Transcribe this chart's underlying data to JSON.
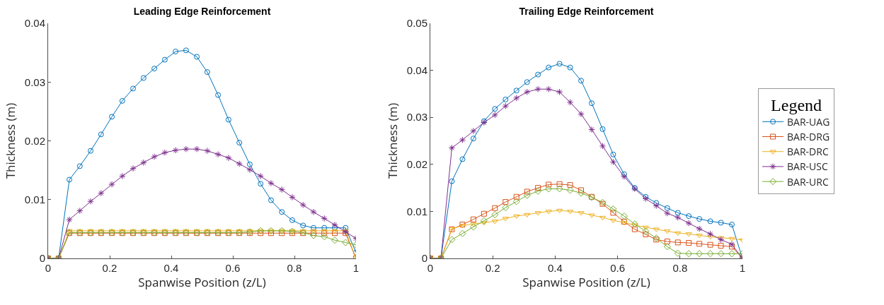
{
  "chart_data": [
    {
      "type": "line",
      "title": "Leading Edge Reinforcement",
      "xlabel": "Spanwise Position (z/L)",
      "ylabel": "Thickness (m)",
      "x": [
        0,
        0.034,
        0.069,
        0.103,
        0.138,
        0.172,
        0.207,
        0.241,
        0.276,
        0.31,
        0.345,
        0.379,
        0.414,
        0.448,
        0.483,
        0.517,
        0.552,
        0.586,
        0.621,
        0.655,
        0.69,
        0.724,
        0.759,
        0.793,
        0.828,
        0.862,
        0.897,
        0.931,
        0.966,
        1
      ],
      "xlim": [
        0,
        1
      ],
      "xticks": [
        0,
        0.2,
        0.4,
        0.6,
        0.8,
        1
      ],
      "ylim": [
        0,
        0.04
      ],
      "yticks": [
        0,
        0.01,
        0.02,
        0.03,
        0.04
      ],
      "grid": false,
      "legend": false,
      "series": [
        {
          "color": "#0072bd",
          "marker": "circle",
          "values": [
            0,
            0,
            0.0134,
            0.0157,
            0.0183,
            0.0211,
            0.0241,
            0.0268,
            0.0289,
            0.0307,
            0.0323,
            0.0338,
            0.0352,
            0.0354,
            0.0343,
            0.0317,
            0.0278,
            0.0236,
            0.0197,
            0.016,
            0.0127,
            0.0099,
            0.0079,
            0.0065,
            0.0056,
            0.0052,
            0.0052,
            0.0052,
            0.0052,
            0.001
          ]
        },
        {
          "color": "#d95319",
          "marker": "square",
          "values": [
            0,
            0,
            0.0043,
            0.0043,
            0.0043,
            0.0043,
            0.0043,
            0.0043,
            0.0043,
            0.0043,
            0.0043,
            0.0043,
            0.0043,
            0.0043,
            0.0043,
            0.0043,
            0.0043,
            0.0043,
            0.0043,
            0.0043,
            0.0043,
            0.0043,
            0.0043,
            0.0043,
            0.0043,
            0.0043,
            0.0043,
            0.0043,
            0.0043,
            0
          ]
        },
        {
          "color": "#edb120",
          "marker": "triangle",
          "values": [
            0,
            0,
            0.0047,
            0.0047,
            0.0047,
            0.0047,
            0.0047,
            0.0047,
            0.0047,
            0.0047,
            0.0047,
            0.0047,
            0.0047,
            0.0047,
            0.0047,
            0.0047,
            0.0047,
            0.0047,
            0.0047,
            0.0047,
            0.0047,
            0.0047,
            0.0047,
            0.0047,
            0.0047,
            0.0047,
            0.0047,
            0.0047,
            0.0047,
            0
          ]
        },
        {
          "color": "#7e2f8e",
          "marker": "cross",
          "values": [
            0,
            0,
            0.0066,
            0.0081,
            0.0097,
            0.0111,
            0.0126,
            0.014,
            0.0153,
            0.0163,
            0.0173,
            0.018,
            0.0184,
            0.0186,
            0.0186,
            0.0183,
            0.0177,
            0.0171,
            0.0161,
            0.0151,
            0.014,
            0.0128,
            0.0117,
            0.0104,
            0.0091,
            0.0079,
            0.0068,
            0.0057,
            0.0045,
            0.0034
          ]
        },
        {
          "color": "#77ac30",
          "marker": "diamond",
          "values": [
            0,
            0,
            0.0044,
            0.0044,
            0.0044,
            0.0044,
            0.0044,
            0.0044,
            0.0044,
            0.0044,
            0.0044,
            0.0044,
            0.0044,
            0.0044,
            0.0044,
            0.0044,
            0.0044,
            0.0044,
            0.0044,
            0.0045,
            0.0047,
            0.0047,
            0.0047,
            0.0046,
            0.0044,
            0.0039,
            0.0037,
            0.0031,
            0.0027,
            0.0023
          ]
        }
      ]
    },
    {
      "type": "line",
      "title": "Trailing Edge Reinforcement",
      "xlabel": "Spanwise Position (z/L)",
      "ylabel": "Thickness (m)",
      "legend_title": "Legend",
      "x": [
        0,
        0.034,
        0.069,
        0.103,
        0.138,
        0.172,
        0.207,
        0.241,
        0.276,
        0.31,
        0.345,
        0.379,
        0.414,
        0.448,
        0.483,
        0.517,
        0.552,
        0.586,
        0.621,
        0.655,
        0.69,
        0.724,
        0.759,
        0.793,
        0.828,
        0.862,
        0.897,
        0.931,
        0.966,
        1
      ],
      "xlim": [
        0,
        1
      ],
      "xticks": [
        0,
        0.2,
        0.4,
        0.6,
        0.8,
        1
      ],
      "ylim": [
        0,
        0.05
      ],
      "yticks": [
        0,
        0.01,
        0.02,
        0.03,
        0.04,
        0.05
      ],
      "grid": false,
      "legend": "right",
      "series": [
        {
          "name": "BAR-UAG",
          "color": "#0072bd",
          "marker": "circle",
          "values": [
            0,
            0,
            0.0164,
            0.0211,
            0.0255,
            0.0292,
            0.0318,
            0.0338,
            0.0357,
            0.0375,
            0.0391,
            0.0406,
            0.0414,
            0.0406,
            0.0378,
            0.033,
            0.0275,
            0.0221,
            0.0179,
            0.015,
            0.0131,
            0.0118,
            0.0107,
            0.0097,
            0.009,
            0.0084,
            0.0079,
            0.0076,
            0.0072,
            0
          ]
        },
        {
          "name": "BAR-DRG",
          "color": "#d95319",
          "marker": "square",
          "values": [
            0,
            0,
            0.0062,
            0.0072,
            0.0083,
            0.0095,
            0.0107,
            0.012,
            0.0131,
            0.0142,
            0.015,
            0.0157,
            0.0158,
            0.0156,
            0.0145,
            0.0131,
            0.0116,
            0.0097,
            0.0078,
            0.0062,
            0.0051,
            0.004,
            0.0036,
            0.0034,
            0.0033,
            0.0031,
            0.0029,
            0.0027,
            0.0025,
            0
          ]
        },
        {
          "name": "BAR-DRC",
          "color": "#edb120",
          "marker": "triangle",
          "values": [
            0,
            0,
            0.0063,
            0.007,
            0.0073,
            0.0076,
            0.0079,
            0.0085,
            0.009,
            0.0093,
            0.0097,
            0.01,
            0.0102,
            0.01,
            0.0097,
            0.0092,
            0.0087,
            0.0081,
            0.0076,
            0.0071,
            0.0066,
            0.0062,
            0.0058,
            0.0054,
            0.0052,
            0.0049,
            0.0046,
            0.0044,
            0.0042,
            0.0039
          ]
        },
        {
          "name": "BAR-USC",
          "color": "#7e2f8e",
          "marker": "cross",
          "values": [
            0,
            0,
            0.0235,
            0.0252,
            0.0271,
            0.0289,
            0.0305,
            0.0324,
            0.0341,
            0.0354,
            0.036,
            0.036,
            0.0354,
            0.0332,
            0.0307,
            0.0274,
            0.0239,
            0.0205,
            0.0174,
            0.0148,
            0.0127,
            0.0112,
            0.0096,
            0.0087,
            0.0075,
            0.0063,
            0.0052,
            0.004,
            0.003,
            0
          ]
        },
        {
          "name": "BAR-URC",
          "color": "#77ac30",
          "marker": "diamond",
          "values": [
            0,
            0,
            0.004,
            0.0053,
            0.0067,
            0.008,
            0.0093,
            0.0108,
            0.0121,
            0.0134,
            0.0143,
            0.0148,
            0.0148,
            0.0145,
            0.0139,
            0.013,
            0.0119,
            0.0105,
            0.009,
            0.0073,
            0.0058,
            0.0043,
            0.0025,
            0.0011,
            0.001,
            0.001,
            0.001,
            0.001,
            0.001,
            0.001
          ]
        }
      ]
    }
  ]
}
